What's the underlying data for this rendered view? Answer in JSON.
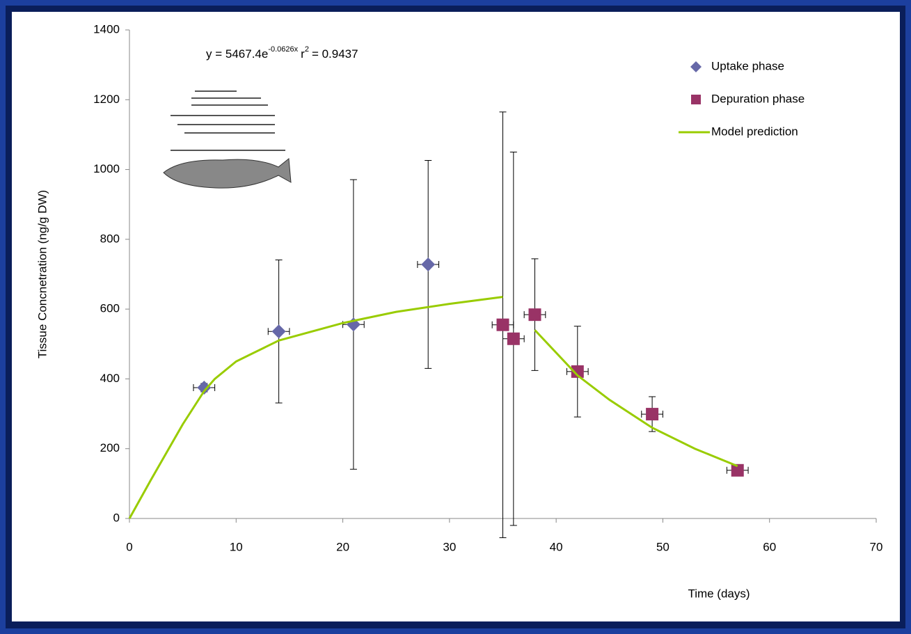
{
  "chart_data": {
    "type": "scatter",
    "equation": {
      "base": "y = 5467.4e",
      "exponent": "-0.0626x",
      "r": "r",
      "r_power": "2",
      "r_value": "= 0.9437"
    },
    "x_label": "Time (days)",
    "y_label": "Tissue Concnetration (ng/g DW)",
    "xlim": [
      0,
      70
    ],
    "xticks": [
      0,
      10,
      20,
      30,
      40,
      50,
      60,
      70
    ],
    "ylim": [
      0,
      1400
    ],
    "yticks": [
      0,
      200,
      400,
      600,
      800,
      1000,
      1200,
      1400
    ],
    "legend": "top-right",
    "series": [
      {
        "name": "Uptake phase",
        "color": "#6668a8",
        "marker": "diamond",
        "x": [
          7,
          14,
          21,
          28
        ],
        "values": [
          375,
          536,
          556,
          728
        ],
        "yerr": [
          12,
          205,
          415,
          298
        ],
        "xerr": [
          1,
          1,
          1,
          1
        ]
      },
      {
        "name": "Depuration phase",
        "color": "#993366",
        "marker": "square",
        "x": [
          35,
          36,
          38,
          42,
          49,
          57
        ],
        "values": [
          555,
          515,
          584,
          421,
          299,
          138
        ],
        "yerr": [
          610,
          535,
          160,
          130,
          50,
          10
        ],
        "xerr": [
          1,
          1,
          1,
          1,
          1,
          1
        ]
      },
      {
        "name": "Model prediction",
        "color": "#99cc00",
        "marker": "line",
        "x": [
          0,
          2,
          5,
          7,
          8,
          10,
          14,
          20,
          25,
          30,
          35,
          35,
          38,
          42,
          45,
          49,
          53,
          57
        ],
        "values": [
          0,
          110,
          270,
          365,
          400,
          450,
          510,
          560,
          592,
          615,
          635,
          null,
          540,
          410,
          340,
          260,
          200,
          150
        ]
      }
    ]
  }
}
